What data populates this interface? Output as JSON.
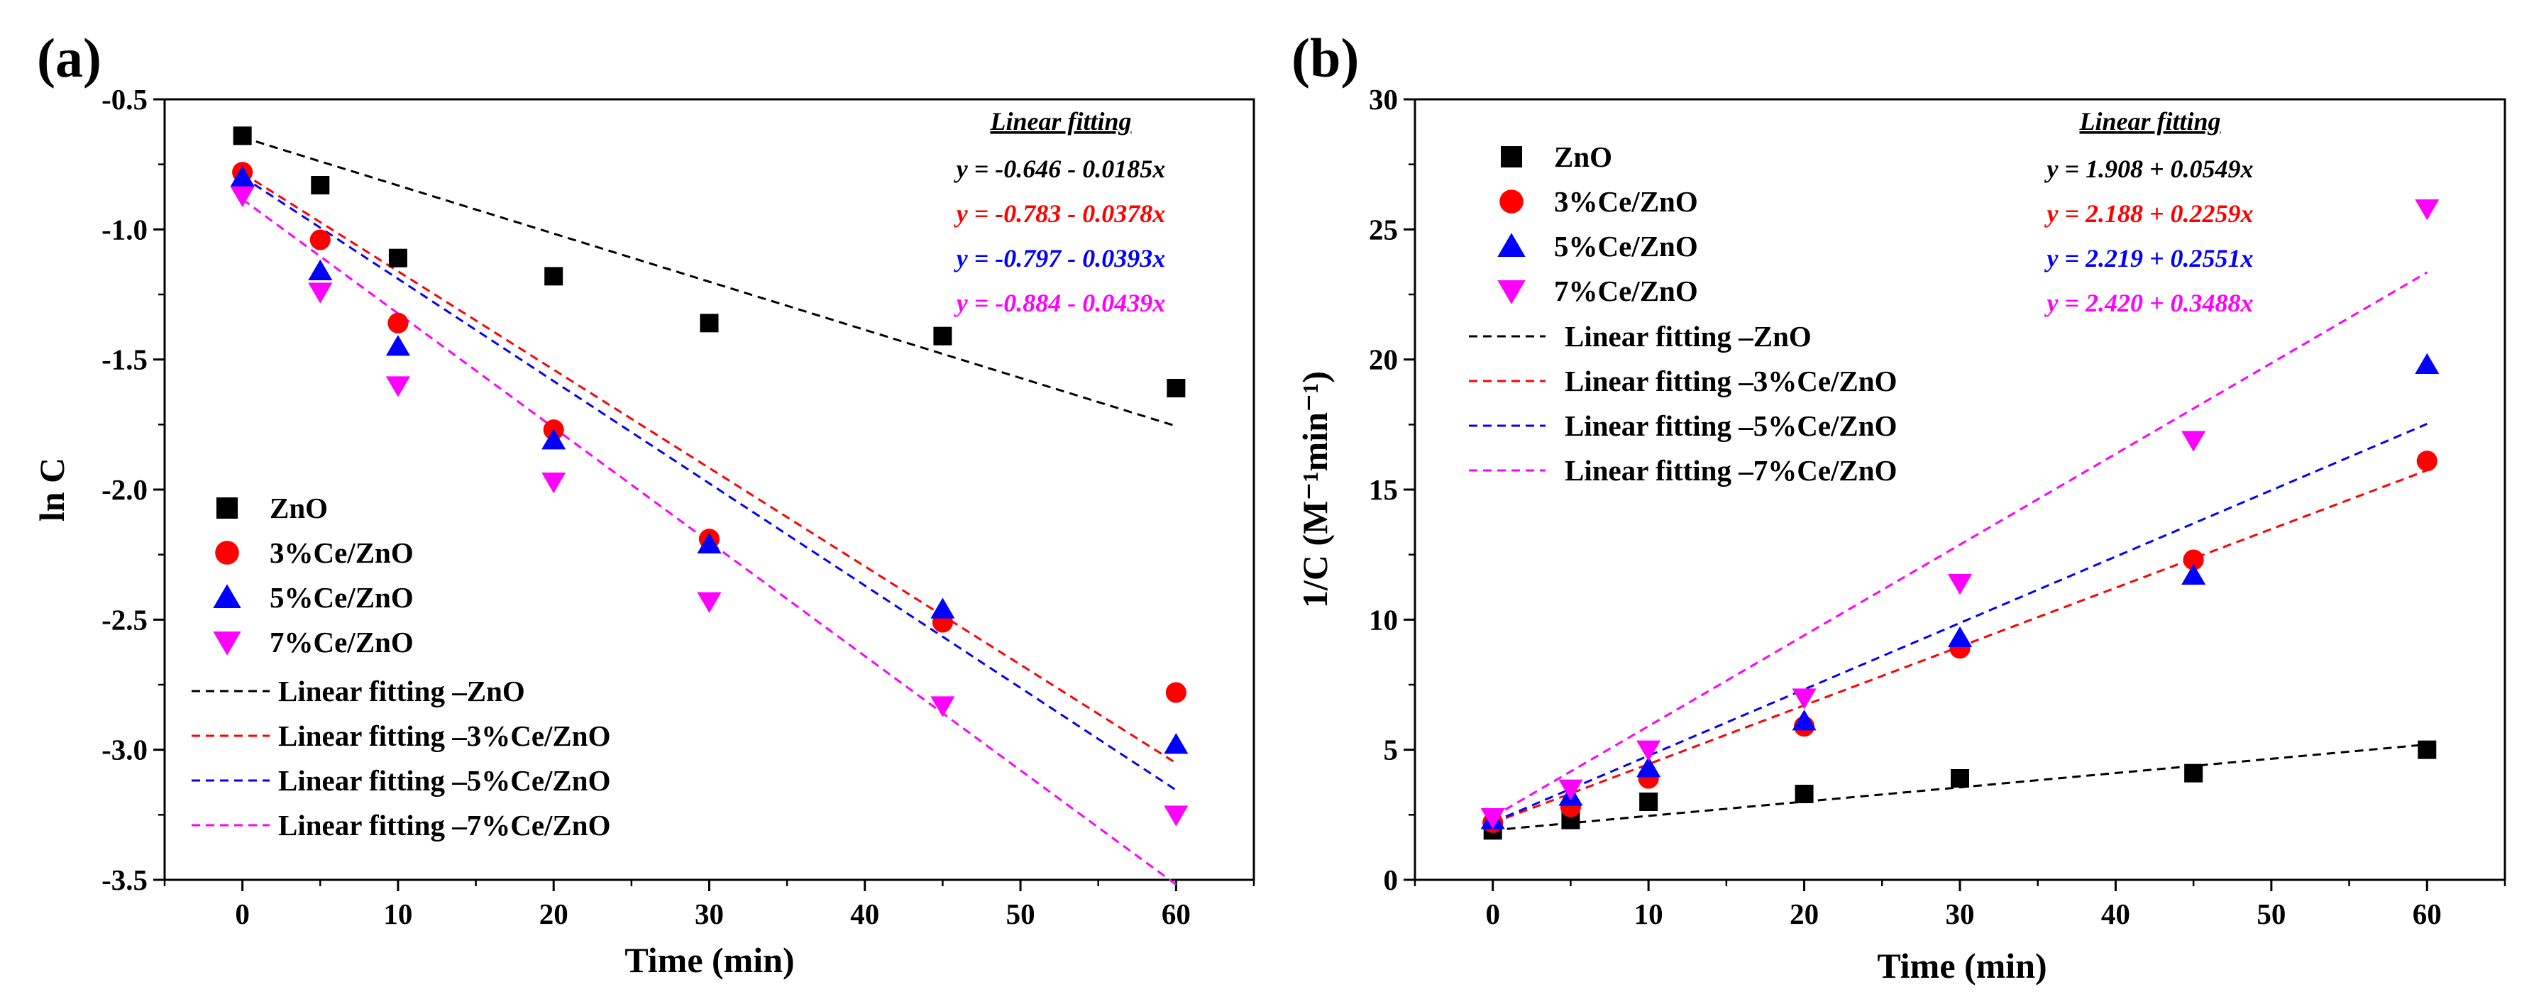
{
  "chart_data": [
    {
      "type": "scatter",
      "panel_label": "(a)",
      "title": "",
      "xlabel": "Time (min)",
      "ylabel": "ln C",
      "xlim": [
        -5,
        65
      ],
      "ylim": [
        -3.5,
        -0.5
      ],
      "x_ticks": [
        0,
        10,
        20,
        30,
        40,
        50,
        60
      ],
      "x_tick_labels": [
        "0",
        "10",
        "20",
        "30",
        "40",
        "50",
        "60"
      ],
      "y_ticks": [
        -3.5,
        -3.0,
        -2.5,
        -2.0,
        -1.5,
        -1.0,
        -0.5
      ],
      "y_tick_labels": [
        "-3.5",
        "-3.0",
        "-2.5",
        "-2.0",
        "-1.5",
        "-1.0",
        "-0.5"
      ],
      "grid": false,
      "legend_position": "bottom-left",
      "fit_box_title": "Linear fitting",
      "x": [
        0,
        5,
        10,
        20,
        30,
        45,
        60
      ],
      "series": [
        {
          "name": "ZnO",
          "marker": "square",
          "color": "#000000",
          "values": [
            -0.64,
            -0.83,
            -1.11,
            -1.18,
            -1.36,
            -1.41,
            -1.61
          ],
          "fit": {
            "intercept": -0.646,
            "slope": -0.0185,
            "label": "Linear fitting –ZnO",
            "equation": "y = -0.646 - 0.0185x"
          }
        },
        {
          "name": "3%Ce/ZnO",
          "marker": "circle",
          "color": "#ff0000",
          "values": [
            -0.78,
            -1.04,
            -1.36,
            -1.77,
            -2.19,
            -2.51,
            -2.78
          ],
          "fit": {
            "intercept": -0.783,
            "slope": -0.0378,
            "label": "Linear fitting –3%Ce/ZnO",
            "equation": "y = -0.783 - 0.0378x"
          }
        },
        {
          "name": "5%Ce/ZnO",
          "marker": "triangle-up",
          "color": "#0000ff",
          "values": [
            -0.8,
            -1.16,
            -1.45,
            -1.81,
            -2.21,
            -2.46,
            -2.98
          ],
          "fit": {
            "intercept": -0.797,
            "slope": -0.0393,
            "label": "Linear fitting –5%Ce/ZnO",
            "equation": "y = -0.797 - 0.0393x"
          }
        },
        {
          "name": "7%Ce/ZnO",
          "marker": "triangle-down",
          "color": "#ff00ff",
          "values": [
            -0.87,
            -1.24,
            -1.6,
            -1.97,
            -2.43,
            -2.83,
            -3.25
          ],
          "fit": {
            "intercept": -0.884,
            "slope": -0.0439,
            "label": "Linear fitting –7%Ce/ZnO",
            "equation": "y = -0.884 - 0.0439x"
          }
        }
      ]
    },
    {
      "type": "scatter",
      "panel_label": "(b)",
      "title": "",
      "xlabel": "Time (min)",
      "ylabel": "1/C (M⁻¹min⁻¹)",
      "xlim": [
        -5,
        65
      ],
      "ylim": [
        0,
        30
      ],
      "x_ticks": [
        0,
        10,
        20,
        30,
        40,
        50,
        60
      ],
      "x_tick_labels": [
        "0",
        "10",
        "20",
        "30",
        "40",
        "50",
        "60"
      ],
      "y_ticks": [
        0,
        5,
        10,
        15,
        20,
        25,
        30
      ],
      "y_tick_labels": [
        "0",
        "5",
        "10",
        "15",
        "20",
        "25",
        "30"
      ],
      "grid": false,
      "legend_position": "top-left",
      "fit_box_title": "Linear fitting",
      "x": [
        0,
        5,
        10,
        20,
        30,
        45,
        60
      ],
      "series": [
        {
          "name": "ZnO",
          "marker": "square",
          "color": "#000000",
          "values": [
            1.9,
            2.3,
            3.0,
            3.3,
            3.9,
            4.1,
            5.0
          ],
          "fit": {
            "intercept": 1.908,
            "slope": 0.0549,
            "label": "Linear fitting –ZnO",
            "equation": "y = 1.908 + 0.0549x"
          }
        },
        {
          "name": "3%Ce/ZnO",
          "marker": "circle",
          "color": "#ff0000",
          "values": [
            2.2,
            2.8,
            3.9,
            5.9,
            8.9,
            12.3,
            16.1
          ],
          "fit": {
            "intercept": 2.188,
            "slope": 0.2259,
            "label": "Linear fitting –3%Ce/ZnO",
            "equation": "y = 2.188 + 0.2259x"
          }
        },
        {
          "name": "5%Ce/ZnO",
          "marker": "triangle-up",
          "color": "#0000ff",
          "values": [
            2.3,
            3.2,
            4.3,
            6.1,
            9.3,
            11.7,
            19.8
          ],
          "fit": {
            "intercept": 2.219,
            "slope": 0.2551,
            "label": "Linear fitting –5%Ce/ZnO",
            "equation": "y = 2.219 + 0.2551x"
          }
        },
        {
          "name": "7%Ce/ZnO",
          "marker": "triangle-down",
          "color": "#ff00ff",
          "values": [
            2.4,
            3.5,
            5.0,
            7.0,
            11.4,
            16.9,
            25.8
          ],
          "fit": {
            "intercept": 2.42,
            "slope": 0.3488,
            "label": "Linear fitting –7%Ce/ZnO",
            "equation": "y = 2.420 + 0.3488x"
          }
        }
      ]
    }
  ]
}
